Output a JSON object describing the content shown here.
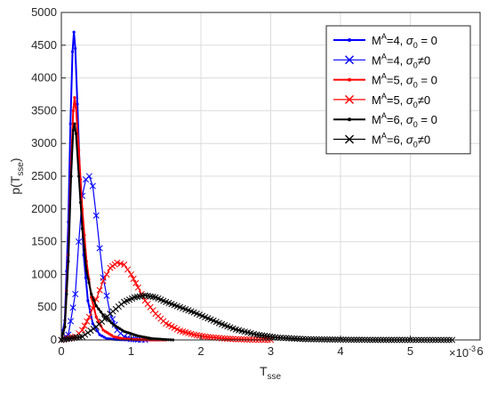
{
  "chart_data": {
    "type": "line",
    "xlabel": "T_sse",
    "xlabel_base": "T",
    "xlabel_sub": "sse",
    "ylabel": "p(T_sse)",
    "ylabel_pre": "p(T",
    "ylabel_sub": "sse",
    "ylabel_post": ")",
    "x_exponent_label": "×10",
    "x_exponent_power": "-3",
    "xlim": [
      0,
      6
    ],
    "ylim": [
      0,
      5000
    ],
    "xticks": [
      0,
      1,
      2,
      3,
      4,
      5,
      6
    ],
    "yticks": [
      0,
      500,
      1000,
      1500,
      2000,
      2500,
      3000,
      3500,
      4000,
      4500,
      5000
    ],
    "grid": true,
    "legend_position": "top-right",
    "series": [
      {
        "name": "M^A=4, σ_0 = 0",
        "legend_base": "M",
        "legend_sup": "A",
        "legend_rest": "=4, ",
        "legend_sigma": "σ",
        "legend_sigsub": "0",
        "legend_op": " = 0",
        "color": "#0000ff",
        "marker": "dot",
        "x": [
          0.0,
          0.05,
          0.1,
          0.13,
          0.16,
          0.18,
          0.2,
          0.23,
          0.27,
          0.32,
          0.38,
          0.45,
          0.55,
          0.65,
          0.8,
          1.0,
          1.2,
          1.4
        ],
        "y": [
          0,
          300,
          1800,
          3300,
          4400,
          4700,
          4450,
          3600,
          2400,
          1300,
          600,
          250,
          80,
          20,
          5,
          0,
          0,
          0
        ]
      },
      {
        "name": "M^A=4, σ_0≠0",
        "legend_base": "M",
        "legend_sup": "A",
        "legend_rest": "=4, ",
        "legend_sigma": "σ",
        "legend_sigsub": "0",
        "legend_op": "≠0",
        "color": "#0000ff",
        "marker": "x",
        "x": [
          0.0,
          0.1,
          0.2,
          0.25,
          0.3,
          0.35,
          0.4,
          0.45,
          0.5,
          0.55,
          0.6,
          0.7,
          0.8,
          0.9,
          1.0,
          1.1,
          1.2
        ],
        "y": [
          0,
          80,
          700,
          1500,
          2200,
          2450,
          2500,
          2350,
          1900,
          1400,
          950,
          400,
          150,
          50,
          15,
          5,
          0
        ]
      },
      {
        "name": "M^A=5, σ_0 = 0",
        "legend_base": "M",
        "legend_sup": "A",
        "legend_rest": "=5, ",
        "legend_sigma": "σ",
        "legend_sigsub": "0",
        "legend_op": " = 0",
        "color": "#ff0000",
        "marker": "dot",
        "x": [
          0.0,
          0.05,
          0.1,
          0.14,
          0.17,
          0.19,
          0.21,
          0.25,
          0.3,
          0.36,
          0.43,
          0.5,
          0.6,
          0.75,
          0.9,
          1.1,
          1.3,
          1.5
        ],
        "y": [
          0,
          200,
          1300,
          2700,
          3500,
          3700,
          3550,
          2900,
          2000,
          1200,
          650,
          350,
          150,
          50,
          15,
          5,
          0,
          0
        ]
      },
      {
        "name": "M^A=5, σ_0≠0",
        "legend_base": "M",
        "legend_sup": "A",
        "legend_rest": "=5, ",
        "legend_sigma": "σ",
        "legend_sigsub": "0",
        "legend_op": "≠0",
        "color": "#ff0000",
        "marker": "x",
        "x": [
          0.0,
          0.2,
          0.3,
          0.4,
          0.5,
          0.6,
          0.7,
          0.8,
          0.9,
          1.0,
          1.1,
          1.2,
          1.35,
          1.5,
          1.7,
          1.9,
          2.1,
          2.3,
          2.5,
          2.7,
          3.0
        ],
        "y": [
          0,
          50,
          150,
          350,
          620,
          900,
          1100,
          1180,
          1150,
          1000,
          800,
          600,
          400,
          250,
          140,
          80,
          45,
          25,
          12,
          5,
          0
        ]
      },
      {
        "name": "M^A=6, σ_0 = 0",
        "legend_base": "M",
        "legend_sup": "A",
        "legend_rest": "=6, ",
        "legend_sigma": "σ",
        "legend_sigsub": "0",
        "legend_op": " = 0",
        "color": "#000000",
        "marker": "dot",
        "x": [
          0.0,
          0.05,
          0.1,
          0.14,
          0.17,
          0.19,
          0.21,
          0.25,
          0.3,
          0.36,
          0.43,
          0.5,
          0.6,
          0.75,
          0.9,
          1.1,
          1.3,
          1.5,
          1.6
        ],
        "y": [
          0,
          200,
          1200,
          2500,
          3200,
          3300,
          3150,
          2500,
          1700,
          1050,
          700,
          520,
          380,
          230,
          130,
          60,
          20,
          5,
          0
        ]
      },
      {
        "name": "M^A=6, σ_0≠0",
        "legend_base": "M",
        "legend_sup": "A",
        "legend_rest": "=6, ",
        "legend_sigma": "σ",
        "legend_sigsub": "0",
        "legend_op": "≠0",
        "color": "#000000",
        "marker": "x",
        "x": [
          0.0,
          0.3,
          0.5,
          0.7,
          0.9,
          1.05,
          1.2,
          1.35,
          1.5,
          1.7,
          1.9,
          2.1,
          2.3,
          2.5,
          2.8,
          3.1,
          3.5,
          4.0,
          4.5,
          5.0,
          5.6
        ],
        "y": [
          0,
          50,
          200,
          400,
          580,
          650,
          680,
          650,
          580,
          500,
          420,
          330,
          240,
          160,
          80,
          35,
          12,
          4,
          1,
          0,
          0
        ]
      }
    ]
  }
}
